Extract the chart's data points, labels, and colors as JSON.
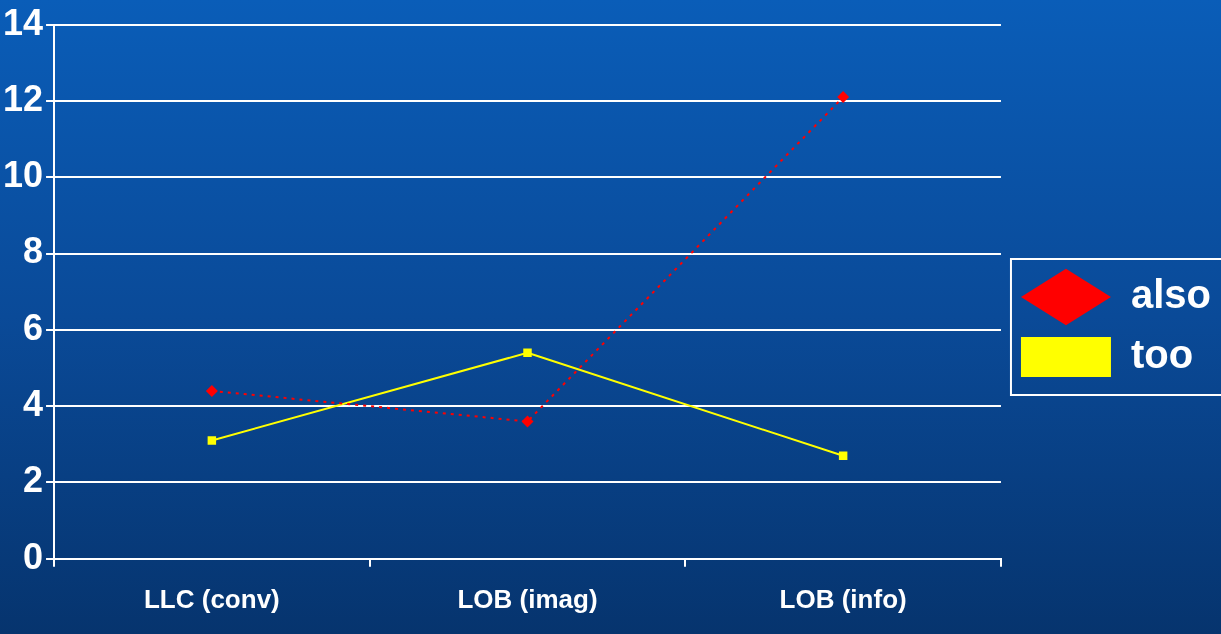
{
  "chart_data": {
    "type": "line",
    "categories": [
      "LLC (conv)",
      "LOB (imag)",
      "LOB (info)"
    ],
    "series": [
      {
        "name": "also",
        "color": "#ff0000",
        "values": [
          4.4,
          3.6,
          12.1
        ],
        "marker": "diamond",
        "line_style": "dotted"
      },
      {
        "name": "too",
        "color": "#ffff00",
        "values": [
          3.1,
          5.4,
          2.7
        ],
        "marker": "square",
        "line_style": "solid"
      }
    ],
    "ylim": [
      0,
      14
    ],
    "yticks": [
      0,
      2,
      4,
      6,
      8,
      10,
      12,
      14
    ],
    "grid": "y",
    "legend": "right"
  }
}
